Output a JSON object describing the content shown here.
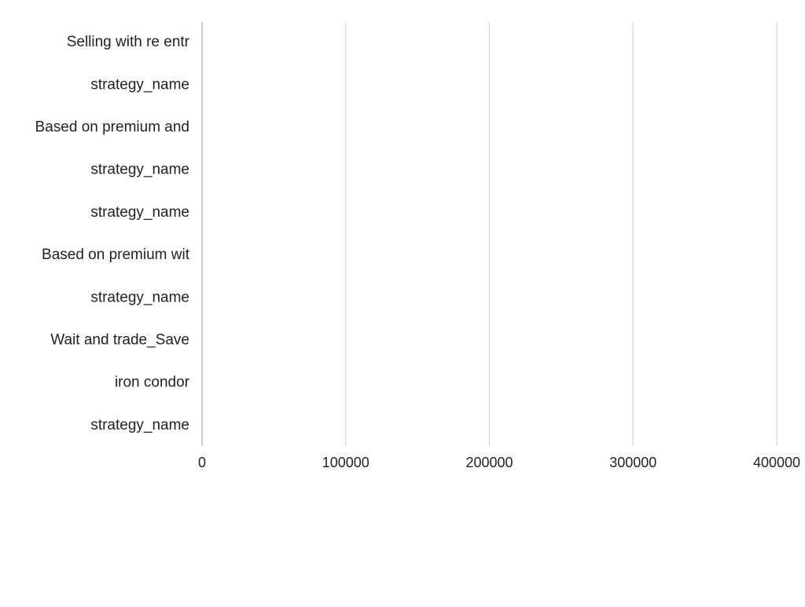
{
  "chart_data": {
    "type": "bar",
    "orientation": "horizontal",
    "title": "",
    "xlabel": "",
    "ylabel": "",
    "categories": [
      "Selling with re entr",
      "strategy_name",
      "Based on premium and",
      "strategy_name",
      "strategy_name",
      "Based on premium wit",
      "strategy_name",
      "Wait and trade_Save",
      "iron condor",
      "strategy_name"
    ],
    "values": [
      0,
      0,
      0,
      0,
      0,
      0,
      0,
      0,
      0,
      0
    ],
    "xlim": [
      0,
      400000
    ],
    "x_ticks": [
      0,
      100000,
      200000,
      300000,
      400000
    ],
    "x_tick_labels": [
      "0",
      "100000",
      "200000",
      "300000",
      "400000"
    ],
    "grid": "vertical",
    "legend": "none",
    "colors": {
      "bar": "#4472c4",
      "grid": "#d0d0d0",
      "axis": "#9a9a9a",
      "text": "#222222"
    }
  }
}
